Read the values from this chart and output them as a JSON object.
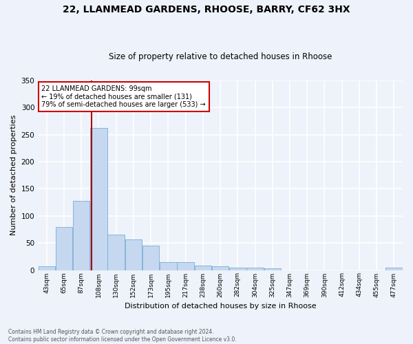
{
  "title1": "22, LLANMEAD GARDENS, RHOOSE, BARRY, CF62 3HX",
  "title2": "Size of property relative to detached houses in Rhoose",
  "xlabel": "Distribution of detached houses by size in Rhoose",
  "ylabel": "Number of detached properties",
  "categories": [
    "43sqm",
    "65sqm",
    "87sqm",
    "108sqm",
    "130sqm",
    "152sqm",
    "173sqm",
    "195sqm",
    "217sqm",
    "238sqm",
    "260sqm",
    "282sqm",
    "304sqm",
    "325sqm",
    "347sqm",
    "369sqm",
    "390sqm",
    "412sqm",
    "434sqm",
    "455sqm",
    "477sqm"
  ],
  "values": [
    7,
    80,
    128,
    263,
    66,
    56,
    45,
    15,
    15,
    8,
    7,
    5,
    5,
    3,
    0,
    0,
    0,
    0,
    0,
    0,
    4
  ],
  "bar_color": "#c5d8f0",
  "bar_edge_color": "#7aadd4",
  "annotation_text_line1": "22 LLANMEAD GARDENS: 99sqm",
  "annotation_text_line2": "← 19% of detached houses are smaller (131)",
  "annotation_text_line3": "79% of semi-detached houses are larger (533) →",
  "annotation_box_color": "#ffffff",
  "annotation_box_edge": "#cc0000",
  "vline_color": "#aa0000",
  "ylim": [
    0,
    350
  ],
  "yticks": [
    0,
    50,
    100,
    150,
    200,
    250,
    300,
    350
  ],
  "footnote": "Contains HM Land Registry data © Crown copyright and database right 2024.\nContains public sector information licensed under the Open Government Licence v3.0.",
  "bg_color": "#eef2fa",
  "grid_color": "#ffffff"
}
